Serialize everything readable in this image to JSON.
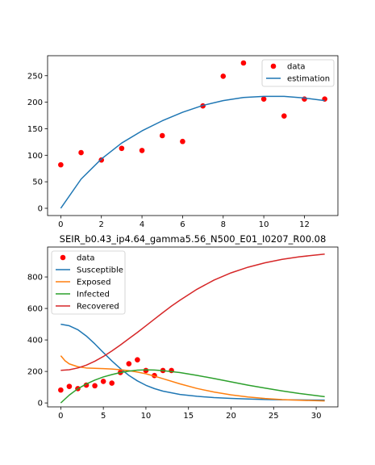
{
  "chart_data": [
    {
      "type": "scatter",
      "xlim": [
        -0.65,
        13.65
      ],
      "ylim": [
        -13.7,
        287.7
      ],
      "xticks": [
        0,
        2,
        4,
        6,
        8,
        10,
        12
      ],
      "yticks": [
        0,
        50,
        100,
        150,
        200,
        250
      ],
      "legend_position": "upper right",
      "series": [
        {
          "name": "data",
          "kind": "scatter",
          "color": "#ff0000",
          "x": [
            0,
            1,
            2,
            3,
            4,
            5,
            6,
            7,
            8,
            9,
            10,
            11,
            12,
            13
          ],
          "y": [
            82,
            105,
            91,
            113,
            109,
            137,
            126,
            193,
            249,
            274,
            206,
            174,
            206,
            206
          ]
        },
        {
          "name": "estimation",
          "kind": "line",
          "color": "#1f77b4",
          "x": [
            0,
            1,
            2,
            3,
            4,
            5,
            6,
            7,
            8,
            9,
            10,
            11,
            12,
            13
          ],
          "y": [
            0,
            55,
            93,
            123,
            146,
            165,
            181,
            194,
            203,
            209,
            211,
            211,
            208,
            203
          ]
        }
      ]
    },
    {
      "type": "line",
      "title": "SEIR_b0.43_ip4.64_gamma5.56_N500_E01_I0207_R00.08",
      "xlim": [
        -1.55,
        32.55
      ],
      "ylim": [
        -25,
        990
      ],
      "xticks": [
        0,
        5,
        10,
        15,
        20,
        25,
        30
      ],
      "yticks": [
        0,
        200,
        400,
        600,
        800
      ],
      "legend_position": "upper left",
      "series": [
        {
          "name": "data",
          "kind": "scatter",
          "color": "#ff0000",
          "x": [
            0,
            1,
            2,
            3,
            4,
            5,
            6,
            7,
            8,
            9,
            10,
            11,
            12,
            13
          ],
          "y": [
            82,
            105,
            91,
            113,
            109,
            137,
            126,
            193,
            249,
            274,
            206,
            174,
            206,
            206
          ]
        },
        {
          "name": "Susceptible",
          "kind": "line",
          "color": "#1f77b4",
          "x": [
            0,
            1,
            2,
            3,
            4,
            5,
            6,
            7,
            8,
            9,
            10,
            11,
            12,
            14,
            16,
            18,
            20,
            22,
            24,
            26,
            28,
            31
          ],
          "y": [
            500,
            490,
            465,
            425,
            375,
            320,
            267,
            218,
            175,
            140,
            112,
            91,
            75,
            54,
            42,
            34,
            29,
            25,
            22,
            20,
            19,
            18
          ]
        },
        {
          "name": "Exposed",
          "kind": "line",
          "color": "#ff7f0e",
          "x": [
            0,
            0.5,
            1,
            2,
            3,
            4,
            5,
            6,
            7,
            8,
            9,
            10,
            11,
            12,
            14,
            16,
            18,
            20,
            22,
            24,
            26,
            28,
            31
          ],
          "y": [
            300,
            268,
            248,
            230,
            222,
            220,
            218,
            215,
            211,
            205,
            196,
            185,
            170,
            154,
            121,
            92,
            69,
            51,
            38,
            28,
            21,
            17,
            13
          ]
        },
        {
          "name": "Infected",
          "kind": "line",
          "color": "#2ca02c",
          "x": [
            0,
            1,
            2,
            3,
            4,
            5,
            6,
            7,
            8,
            9,
            10,
            11,
            12,
            14,
            16,
            18,
            20,
            22,
            24,
            26,
            28,
            31
          ],
          "y": [
            0,
            50,
            90,
            120,
            145,
            165,
            180,
            193,
            202,
            208,
            210,
            209,
            205,
            193,
            175,
            155,
            134,
            113,
            94,
            76,
            60,
            40
          ]
        },
        {
          "name": "Recovered",
          "kind": "line",
          "color": "#d62728",
          "x": [
            0,
            1,
            2,
            3,
            4,
            5,
            6,
            7,
            8,
            9,
            10,
            11,
            12,
            13,
            14,
            16,
            18,
            20,
            22,
            24,
            26,
            28,
            31
          ],
          "y": [
            207,
            211,
            222,
            240,
            265,
            295,
            330,
            368,
            408,
            448,
            490,
            532,
            574,
            615,
            652,
            722,
            780,
            826,
            862,
            890,
            912,
            928,
            945
          ]
        }
      ]
    }
  ]
}
